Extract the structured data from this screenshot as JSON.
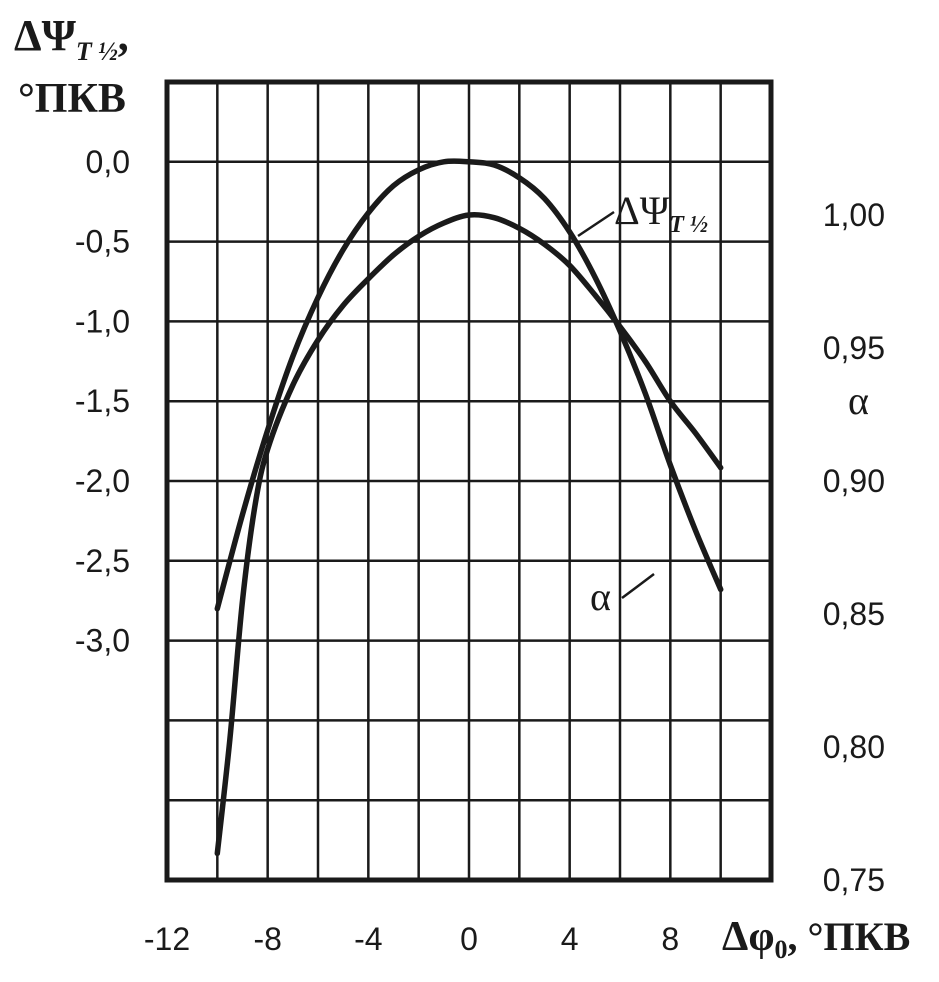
{
  "chart_data": {
    "type": "line",
    "x_axis": {
      "label_main": "Δφ",
      "label_sub": "0",
      "label_unit": ", °ПКВ",
      "range": [
        -12,
        12
      ],
      "ticks": [
        -12,
        -8,
        -4,
        0,
        4,
        8
      ],
      "tick_labels": [
        "-12",
        "-8",
        "-4",
        "0",
        "4",
        "8"
      ],
      "grid_lines": [
        -12,
        -10,
        -8,
        -6,
        -4,
        -2,
        0,
        2,
        4,
        6,
        8,
        10,
        12
      ]
    },
    "y_axis_left": {
      "label_line1_main": "ΔΨ",
      "label_line1_sub": "T ½",
      "label_line1_suffix": ",",
      "label_line2": "°ПКВ",
      "range": [
        -4.5,
        0.5
      ],
      "ticks": [
        0.0,
        -0.5,
        -1.0,
        -1.5,
        -2.0,
        -2.5,
        -3.0
      ],
      "tick_labels": [
        "0,0",
        "-0,5",
        "-1,0",
        "-1,5",
        "-2,0",
        "-2,5",
        "-3,0"
      ],
      "grid_lines": [
        0.0,
        -0.5,
        -1.0,
        -1.5,
        -2.0,
        -2.5,
        -3.0,
        -3.5,
        -4.0
      ]
    },
    "y_axis_right": {
      "label": "α",
      "range": [
        0.75,
        1.05
      ],
      "ticks": [
        1.0,
        0.95,
        0.9,
        0.85,
        0.8,
        0.75
      ],
      "tick_labels": [
        "1,00",
        "0,95",
        "0,90",
        "0,85",
        "0,80",
        "0,75"
      ]
    },
    "grid": true,
    "series": [
      {
        "name": "ΔΨT½",
        "label_main": "ΔΨ",
        "label_sub": "T ½",
        "axis": "left",
        "x": [
          -10,
          -9,
          -8,
          -7,
          -6,
          -5,
          -4,
          -3,
          -2,
          -1,
          0,
          1,
          2,
          3,
          4,
          5,
          6,
          7,
          8,
          9,
          10
        ],
        "y": [
          -2.8,
          -2.21,
          -1.68,
          -1.22,
          -0.85,
          -0.55,
          -0.32,
          -0.15,
          -0.05,
          0.0,
          0.0,
          -0.02,
          -0.1,
          -0.23,
          -0.44,
          -0.72,
          -1.06,
          -1.45,
          -1.9,
          -2.31,
          -2.68
        ]
      },
      {
        "name": "α",
        "label_main": "α",
        "axis": "right",
        "x": [
          -10,
          -9.5,
          -9,
          -8.5,
          -8,
          -7,
          -6,
          -5,
          -4,
          -3,
          -2,
          -1,
          0,
          1,
          2,
          3,
          4,
          5,
          6,
          7,
          8,
          9,
          10
        ],
        "y": [
          0.76,
          0.803,
          0.855,
          0.891,
          0.912,
          0.936,
          0.953,
          0.966,
          0.976,
          0.985,
          0.992,
          0.997,
          1.0,
          0.999,
          0.995,
          0.989,
          0.981,
          0.97,
          0.958,
          0.945,
          0.93,
          0.918,
          0.905
        ]
      }
    ]
  }
}
